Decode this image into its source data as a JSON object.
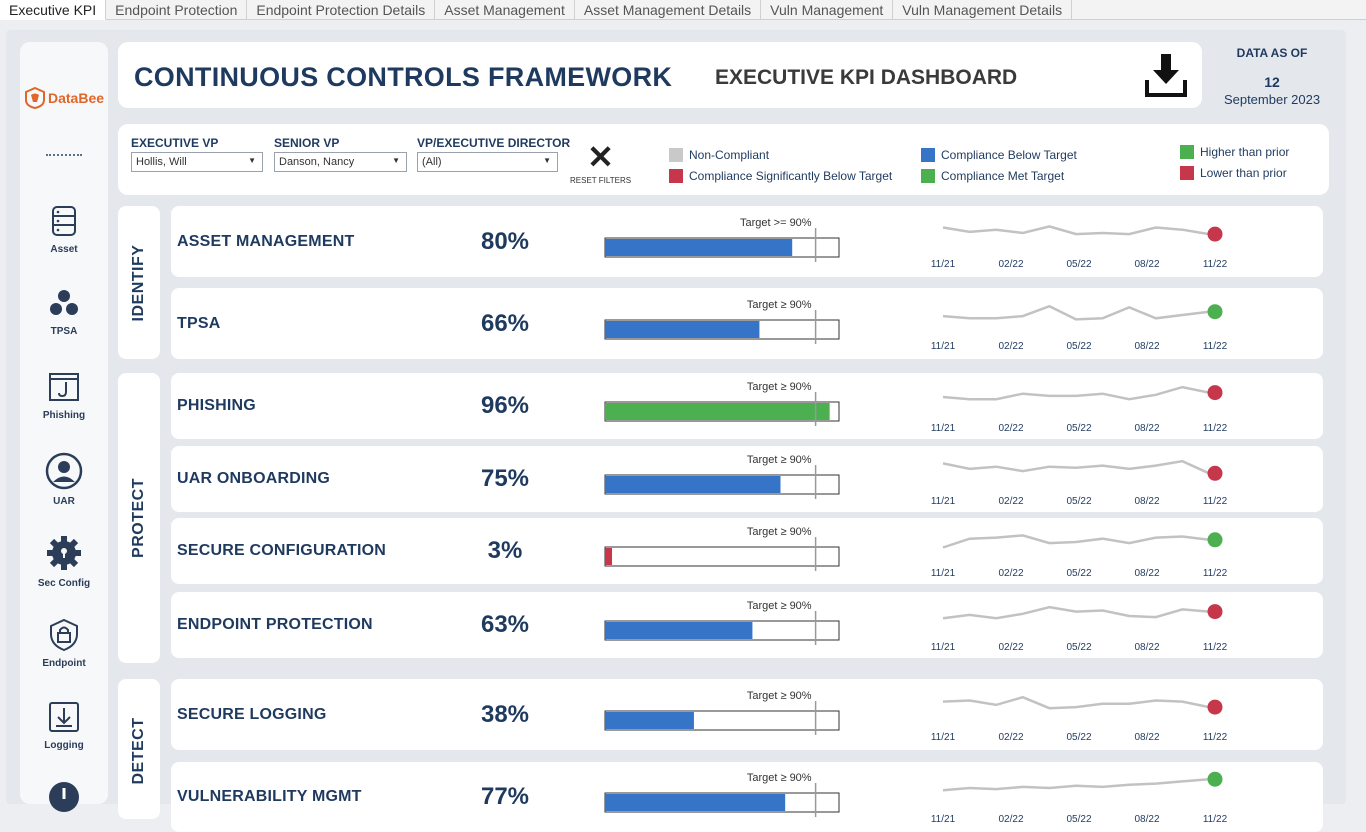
{
  "tabs": [
    "Executive KPI",
    "Endpoint Protection",
    "Endpoint Protection Details",
    "Asset Management",
    "Asset Management Details",
    "Vuln Management",
    "Vuln Management Details"
  ],
  "logo_text": "DataBee",
  "nav": [
    {
      "label": "Asset",
      "icon": "database-icon"
    },
    {
      "label": "TPSA",
      "icon": "people-icon"
    },
    {
      "label": "Phishing",
      "icon": "hook-icon"
    },
    {
      "label": "UAR",
      "icon": "user-icon"
    },
    {
      "label": "Sec Config",
      "icon": "gear-icon"
    },
    {
      "label": "Endpoint",
      "icon": "lock-shield-icon"
    },
    {
      "label": "Logging",
      "icon": "download-box-icon"
    }
  ],
  "header": {
    "title": "CONTINUOUS CONTROLS FRAMEWORK",
    "subtitle": "EXECUTIVE KPI DASHBOARD",
    "data_as_of_label": "DATA AS OF",
    "day": "12",
    "month_year": "September 2023"
  },
  "filters": {
    "executive_vp": {
      "label": "EXECUTIVE VP",
      "value": "Hollis, Will"
    },
    "senior_vp": {
      "label": "SENIOR VP",
      "value": "Danson, Nancy"
    },
    "vp_exec_director": {
      "label": "VP/EXECUTIVE DIRECTOR",
      "value": "(All)"
    },
    "reset_label": "RESET FILTERS"
  },
  "legend": {
    "non_compliant": "Non-Compliant",
    "sig_below": "Compliance Significantly Below Target",
    "below": "Compliance Below Target",
    "met": "Compliance Met Target",
    "higher": "Higher than prior",
    "lower": "Lower than prior"
  },
  "colors": {
    "non_compliant": "#c9c9c9",
    "sig_below": "#c7374b",
    "below": "#3674c8",
    "met": "#4caf50",
    "higher": "#4caf50",
    "lower": "#c7374b"
  },
  "groups": {
    "identify": "IDENTIFY",
    "protect": "PROTECT",
    "detect": "DETECT"
  },
  "spark_ticks": [
    "11/21",
    "02/22",
    "05/22",
    "08/22",
    "11/22"
  ],
  "rows": [
    {
      "name": "ASSET MANAGEMENT",
      "pct": "80%",
      "value": 0.8,
      "target_label": "Target >= 90%",
      "status": "below",
      "trend": "lower",
      "spark": [
        0.25,
        0.45,
        0.35,
        0.5,
        0.2,
        0.55,
        0.5,
        0.55,
        0.25,
        0.35,
        0.55
      ]
    },
    {
      "name": "TPSA",
      "pct": "66%",
      "value": 0.66,
      "target_label": "Target ≥ 90%",
      "status": "below",
      "trend": "higher",
      "spark": [
        0.55,
        0.65,
        0.65,
        0.55,
        0.1,
        0.7,
        0.65,
        0.15,
        0.65,
        0.5,
        0.35
      ]
    },
    {
      "name": "PHISHING",
      "pct": "96%",
      "value": 0.96,
      "target_label": "Target ≥ 90%",
      "status": "met",
      "trend": "lower",
      "spark": [
        0.5,
        0.6,
        0.6,
        0.35,
        0.45,
        0.45,
        0.35,
        0.6,
        0.4,
        0.05,
        0.3
      ]
    },
    {
      "name": "UAR ONBOARDING",
      "pct": "75%",
      "value": 0.75,
      "target_label": "Target ≥ 90%",
      "status": "below",
      "trend": "lower",
      "spark": [
        0.2,
        0.45,
        0.35,
        0.55,
        0.35,
        0.4,
        0.3,
        0.45,
        0.3,
        0.1,
        0.65
      ]
    },
    {
      "name": "SECURE CONFIGURATION",
      "pct": "3%",
      "value": 0.03,
      "target_label": "Target ≥ 90%",
      "status": "sig_below",
      "trend": "higher",
      "spark": [
        0.75,
        0.35,
        0.3,
        0.2,
        0.55,
        0.5,
        0.35,
        0.55,
        0.3,
        0.25,
        0.4
      ]
    },
    {
      "name": "ENDPOINT PROTECTION",
      "pct": "63%",
      "value": 0.63,
      "target_label": "Target ≥ 90%",
      "status": "below",
      "trend": "lower",
      "spark": [
        0.6,
        0.45,
        0.6,
        0.4,
        0.1,
        0.3,
        0.25,
        0.5,
        0.55,
        0.2,
        0.3
      ]
    },
    {
      "name": "SECURE LOGGING",
      "pct": "38%",
      "value": 0.38,
      "target_label": "Target ≥ 90%",
      "status": "below",
      "trend": "lower",
      "spark": [
        0.3,
        0.25,
        0.45,
        0.1,
        0.6,
        0.55,
        0.4,
        0.4,
        0.25,
        0.3,
        0.55
      ]
    },
    {
      "name": "VULNERABILITY MGMT",
      "pct": "77%",
      "value": 0.77,
      "target_label": "Target ≥ 90%",
      "status": "below",
      "trend": "higher",
      "spark": [
        0.6,
        0.5,
        0.55,
        0.45,
        0.5,
        0.4,
        0.45,
        0.35,
        0.3,
        0.2,
        0.1
      ]
    }
  ]
}
